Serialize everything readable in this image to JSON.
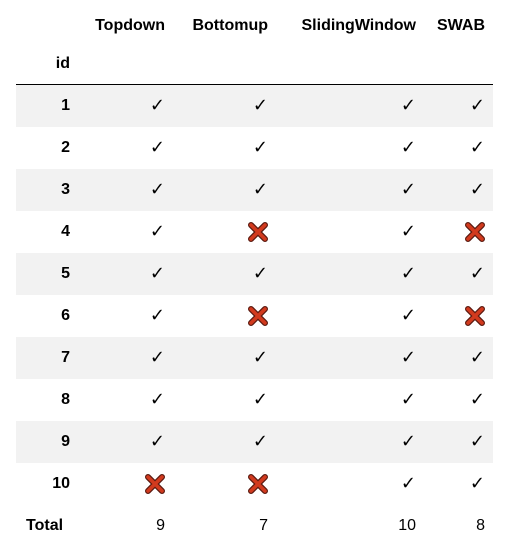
{
  "table": {
    "columns": [
      "Topdown",
      "Bottomup",
      "SlidingWindow",
      "SWAB"
    ],
    "index_name": "id",
    "rows": [
      {
        "id": "1",
        "cells": [
          "check",
          "check",
          "check",
          "check"
        ]
      },
      {
        "id": "2",
        "cells": [
          "check",
          "check",
          "check",
          "check"
        ]
      },
      {
        "id": "3",
        "cells": [
          "check",
          "check",
          "check",
          "check"
        ]
      },
      {
        "id": "4",
        "cells": [
          "check",
          "cross",
          "check",
          "cross"
        ]
      },
      {
        "id": "5",
        "cells": [
          "check",
          "check",
          "check",
          "check"
        ]
      },
      {
        "id": "6",
        "cells": [
          "check",
          "cross",
          "check",
          "cross"
        ]
      },
      {
        "id": "7",
        "cells": [
          "check",
          "check",
          "check",
          "check"
        ]
      },
      {
        "id": "8",
        "cells": [
          "check",
          "check",
          "check",
          "check"
        ]
      },
      {
        "id": "9",
        "cells": [
          "check",
          "check",
          "check",
          "check"
        ]
      },
      {
        "id": "10",
        "cells": [
          "cross",
          "cross",
          "check",
          "check"
        ]
      }
    ],
    "total": {
      "label": "Total",
      "values": [
        "9",
        "7",
        "10",
        "8"
      ]
    }
  },
  "symbols": {
    "check": "✓",
    "cross_color": "#d23a1e",
    "cross_outline": "#5a1a10"
  },
  "colors": {
    "stripe": "#f2f2f2",
    "background": "#ffffff",
    "rule": "#000000"
  }
}
